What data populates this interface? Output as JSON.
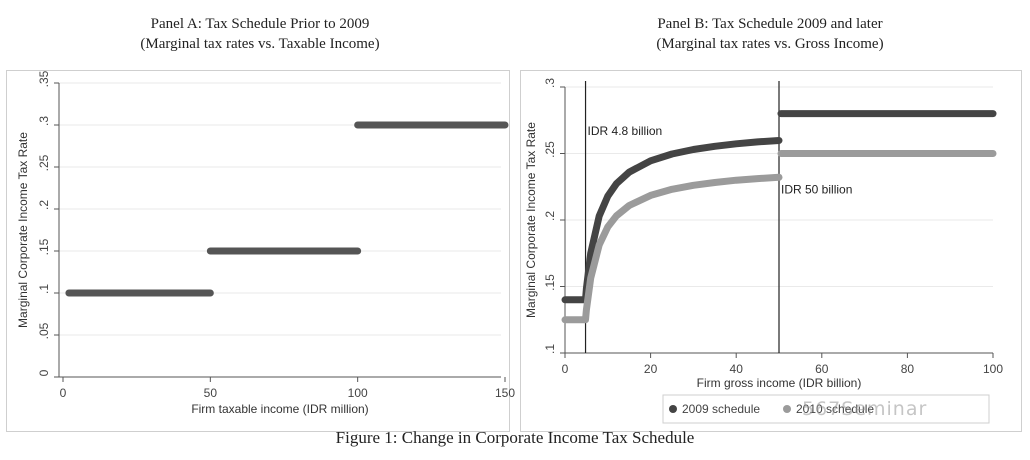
{
  "chart_data": [
    {
      "type": "line",
      "title": "Panel A: Tax Schedule Prior to 2009",
      "subtitle": "(Marginal tax rates vs. Taxable Income)",
      "xlabel": "Firm taxable income (IDR million)",
      "ylabel": "Marginal Corporate Income Tax Rate",
      "xlim": [
        0,
        150
      ],
      "ylim": [
        0,
        0.35
      ],
      "x_ticks": [
        "0",
        "50",
        "100",
        "150"
      ],
      "y_ticks": [
        "0",
        ".05",
        ".1",
        ".15",
        ".2",
        ".25",
        ".3",
        ".35"
      ],
      "segments": [
        {
          "x_start": 2,
          "x_end": 50,
          "rate": 0.1
        },
        {
          "x_start": 50,
          "x_end": 100,
          "rate": 0.15
        },
        {
          "x_start": 100,
          "x_end": 150,
          "rate": 0.3
        }
      ],
      "line_color": "#555555",
      "grid": true
    },
    {
      "type": "line",
      "title": "Panel B: Tax Schedule 2009 and later",
      "subtitle": "(Marginal tax rates vs. Gross Income)",
      "xlabel": "Firm gross income (IDR billion)",
      "ylabel": "Marginal Corporate Income Tax Rate",
      "xlim": [
        0,
        100
      ],
      "ylim": [
        0.1,
        0.3
      ],
      "x_ticks": [
        "0",
        "20",
        "40",
        "60",
        "80",
        "100"
      ],
      "y_ticks": [
        ".1",
        ".15",
        ".2",
        ".25",
        ".3"
      ],
      "annotations": [
        "IDR 4.8 billion",
        "IDR 50 billion"
      ],
      "thresholds": [
        4.8,
        50
      ],
      "series": [
        {
          "name": "2009 schedule",
          "color": "#444444",
          "values": [
            [
              0,
              0.14
            ],
            [
              4.8,
              0.14
            ],
            [
              5,
              0.1484
            ],
            [
              6,
              0.175
            ],
            [
              8,
              0.203
            ],
            [
              10,
              0.218
            ],
            [
              12,
              0.2273
            ],
            [
              15,
              0.236
            ],
            [
              20,
              0.2445
            ],
            [
              25,
              0.2496
            ],
            [
              30,
              0.253
            ],
            [
              35,
              0.2554
            ],
            [
              40,
              0.2573
            ],
            [
              45,
              0.2587
            ],
            [
              50,
              0.2598
            ],
            [
              50,
              0.28
            ],
            [
              100,
              0.28
            ]
          ]
        },
        {
          "name": "2010 schedule",
          "color": "#9b9b9b",
          "values": [
            [
              0,
              0.125
            ],
            [
              4.8,
              0.125
            ],
            [
              5,
              0.1325
            ],
            [
              6,
              0.1563
            ],
            [
              8,
              0.1813
            ],
            [
              10,
              0.1948
            ],
            [
              12,
              0.2031
            ],
            [
              15,
              0.2109
            ],
            [
              20,
              0.2185
            ],
            [
              25,
              0.2231
            ],
            [
              30,
              0.2261
            ],
            [
              35,
              0.2282
            ],
            [
              40,
              0.2299
            ],
            [
              45,
              0.2311
            ],
            [
              50,
              0.2321
            ],
            [
              50,
              0.25
            ],
            [
              100,
              0.25
            ]
          ]
        }
      ],
      "legend": [
        "2009 schedule",
        "2010 schedule"
      ],
      "legend_position": "bottom"
    }
  ],
  "caption": "Figure 1: Change in Corporate Income Tax Schedule",
  "watermark": "567Seminar"
}
